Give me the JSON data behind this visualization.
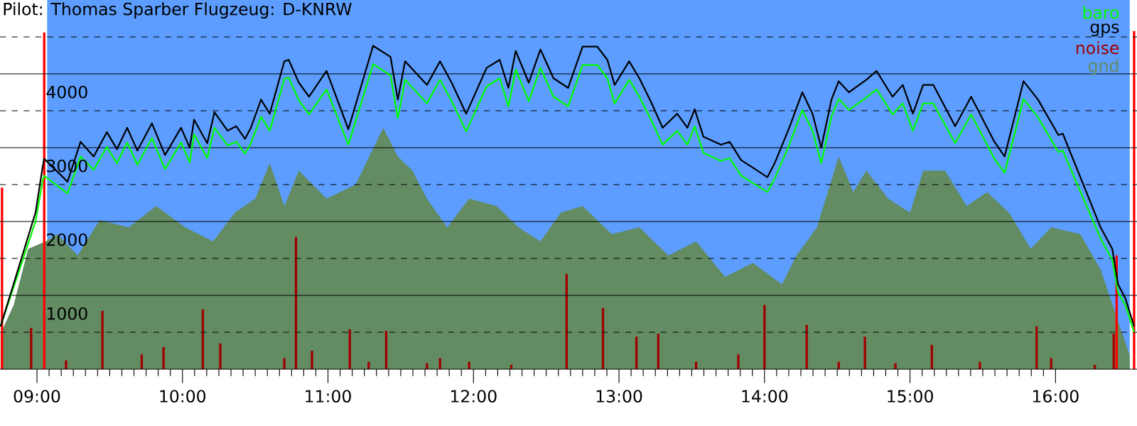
{
  "chart_data": {
    "type": "line",
    "title": "Pilot: Thomas Sparber Flugzeug: D-KNRW",
    "xlim": [
      8.746,
      16.56
    ],
    "ylim": [
      0,
      5000
    ],
    "xticks": [
      {
        "value": 9,
        "label": "09:00"
      },
      {
        "value": 10,
        "label": "10:00"
      },
      {
        "value": 11,
        "label": "11:00"
      },
      {
        "value": 12,
        "label": "12:00"
      },
      {
        "value": 13,
        "label": "13:00"
      },
      {
        "value": 14,
        "label": "14:00"
      },
      {
        "value": 15,
        "label": "15:00"
      },
      {
        "value": 16,
        "label": "16:00"
      }
    ],
    "yticks": [
      {
        "value": 500,
        "label": null
      },
      1000,
      {
        "value": 1500,
        "label": null
      },
      2000,
      {
        "value": 2500,
        "label": null
      },
      3000,
      {
        "value": 3500,
        "label": null
      },
      4000,
      {
        "value": 4500,
        "label": null
      }
    ],
    "grid": "y",
    "legend": "top right",
    "bands": [
      {
        "axis": "x",
        "from": 9.07,
        "to": 16.51,
        "color": "#5c9dff"
      }
    ],
    "series": [
      {
        "name": "baro",
        "color": "#00ff00",
        "x": [
          8.75,
          8.99,
          9.04,
          9.05,
          9.21,
          9.3,
          9.39,
          9.48,
          9.55,
          9.62,
          9.69,
          9.79,
          9.88,
          9.99,
          10.05,
          10.08,
          10.17,
          10.22,
          10.31,
          10.37,
          10.43,
          10.47,
          10.54,
          10.6,
          10.7,
          10.73,
          10.8,
          10.87,
          10.99,
          11.14,
          11.31,
          11.43,
          11.48,
          11.53,
          11.68,
          11.77,
          11.85,
          11.95,
          12.09,
          12.18,
          12.24,
          12.29,
          12.38,
          12.46,
          12.55,
          12.65,
          12.75,
          12.85,
          12.92,
          12.97,
          13.07,
          13.14,
          13.22,
          13.3,
          13.4,
          13.47,
          13.52,
          13.58,
          13.7,
          13.76,
          13.84,
          13.92,
          14.02,
          14.07,
          14.17,
          14.26,
          14.33,
          14.39,
          14.46,
          14.51,
          14.58,
          14.7,
          14.77,
          14.88,
          14.95,
          15.02,
          15.09,
          15.16,
          15.31,
          15.42,
          15.58,
          15.65,
          15.78,
          15.88,
          16.02,
          16.05,
          16.31,
          16.39,
          16.43,
          16.48,
          16.54
        ],
        "values": [
          580,
          2000,
          2560,
          2620,
          2380,
          2880,
          2700,
          3010,
          2790,
          3070,
          2770,
          3130,
          2710,
          3070,
          2800,
          3180,
          2860,
          3270,
          3030,
          3080,
          2920,
          3060,
          3420,
          3230,
          3930,
          3950,
          3640,
          3450,
          3790,
          3040,
          4130,
          3980,
          3400,
          3920,
          3600,
          3920,
          3630,
          3220,
          3830,
          3940,
          3560,
          4060,
          3630,
          4080,
          3690,
          3560,
          4120,
          4120,
          3940,
          3600,
          3920,
          3690,
          3380,
          3040,
          3230,
          3040,
          3290,
          2930,
          2820,
          2860,
          2620,
          2520,
          2400,
          2580,
          3040,
          3510,
          3230,
          2790,
          3420,
          3660,
          3510,
          3680,
          3790,
          3450,
          3600,
          3230,
          3600,
          3600,
          3060,
          3450,
          2850,
          2660,
          3660,
          3410,
          2940,
          2960,
          1770,
          1480,
          1040,
          870,
          500
        ]
      },
      {
        "name": "gps",
        "color": "#000000",
        "x": [
          8.75,
          8.99,
          9.04,
          9.05,
          9.21,
          9.3,
          9.39,
          9.48,
          9.55,
          9.62,
          9.69,
          9.79,
          9.88,
          9.99,
          10.05,
          10.08,
          10.17,
          10.22,
          10.31,
          10.37,
          10.43,
          10.47,
          10.54,
          10.6,
          10.7,
          10.73,
          10.8,
          10.87,
          10.99,
          11.14,
          11.31,
          11.43,
          11.48,
          11.53,
          11.68,
          11.77,
          11.85,
          11.95,
          12.09,
          12.18,
          12.24,
          12.29,
          12.38,
          12.46,
          12.55,
          12.65,
          12.75,
          12.85,
          12.92,
          12.97,
          13.07,
          13.14,
          13.22,
          13.3,
          13.4,
          13.47,
          13.52,
          13.58,
          13.7,
          13.76,
          13.84,
          13.92,
          14.02,
          14.07,
          14.17,
          14.26,
          14.33,
          14.39,
          14.46,
          14.51,
          14.58,
          14.7,
          14.77,
          14.88,
          14.95,
          15.02,
          15.09,
          15.16,
          15.31,
          15.42,
          15.58,
          15.65,
          15.78,
          15.88,
          16.02,
          16.05,
          16.31,
          16.39,
          16.43,
          16.48,
          16.54
        ],
        "values": [
          580,
          2120,
          2750,
          2850,
          2540,
          3080,
          2880,
          3210,
          2980,
          3270,
          2960,
          3330,
          2900,
          3270,
          3000,
          3380,
          3060,
          3480,
          3230,
          3290,
          3120,
          3270,
          3650,
          3460,
          4170,
          4190,
          3880,
          3690,
          4040,
          3250,
          4380,
          4230,
          3650,
          4170,
          3850,
          4170,
          3880,
          3460,
          4080,
          4190,
          3810,
          4310,
          3880,
          4330,
          3940,
          3810,
          4370,
          4370,
          4190,
          3850,
          4170,
          3940,
          3620,
          3270,
          3460,
          3270,
          3520,
          3150,
          3040,
          3080,
          2830,
          2730,
          2600,
          2790,
          3270,
          3750,
          3460,
          3000,
          3650,
          3900,
          3750,
          3920,
          4040,
          3690,
          3850,
          3460,
          3850,
          3850,
          3290,
          3690,
          3080,
          2880,
          3900,
          3650,
          3170,
          3190,
          1920,
          1630,
          1150,
          960,
          580
        ]
      },
      {
        "name": "noise",
        "type": "bar",
        "color": "#a00000",
        "x": [
          8.76,
          8.96,
          9.05,
          9.2,
          9.45,
          9.72,
          9.87,
          10.14,
          10.26,
          10.7,
          10.78,
          10.89,
          11.15,
          11.28,
          11.4,
          11.68,
          11.77,
          11.97,
          12.26,
          12.64,
          12.89,
          13.12,
          13.27,
          13.53,
          13.82,
          14.0,
          14.29,
          14.51,
          14.69,
          14.9,
          15.15,
          15.48,
          15.87,
          15.97,
          16.27,
          16.4,
          16.42,
          16.54
        ],
        "values": [
          2460,
          560,
          4560,
          120,
          790,
          200,
          300,
          810,
          350,
          150,
          1790,
          250,
          540,
          100,
          520,
          80,
          150,
          100,
          60,
          1290,
          830,
          440,
          480,
          100,
          200,
          870,
          600,
          100,
          440,
          80,
          330,
          100,
          580,
          150,
          60,
          480,
          1540,
          4580
        ],
        "colors": [
          "#ff0000",
          "#a00000",
          "#ff0000",
          "#a00000",
          "#a00000",
          "#a00000",
          "#a00000",
          "#a00000",
          "#a00000",
          "#a00000",
          "#a00000",
          "#a00000",
          "#a00000",
          "#a00000",
          "#a00000",
          "#a00000",
          "#a00000",
          "#a00000",
          "#a00000",
          "#a00000",
          "#a00000",
          "#a00000",
          "#a00000",
          "#a00000",
          "#a00000",
          "#a00000",
          "#a00000",
          "#a00000",
          "#a00000",
          "#a00000",
          "#a00000",
          "#a00000",
          "#a00000",
          "#a00000",
          "#a00000",
          "#a00000",
          "#ff0000",
          "#ff0000"
        ]
      },
      {
        "name": "gnd",
        "type": "area",
        "color": "#638c63",
        "x": [
          8.75,
          8.84,
          8.94,
          9.06,
          9.14,
          9.28,
          9.43,
          9.63,
          9.82,
          10.02,
          10.21,
          10.36,
          10.5,
          10.6,
          10.7,
          10.8,
          10.99,
          11.19,
          11.38,
          11.48,
          11.58,
          11.68,
          11.82,
          11.97,
          12.16,
          12.31,
          12.46,
          12.6,
          12.75,
          12.95,
          13.14,
          13.34,
          13.53,
          13.73,
          13.92,
          14.12,
          14.22,
          14.36,
          14.51,
          14.61,
          14.7,
          14.85,
          15.0,
          15.09,
          15.24,
          15.39,
          15.53,
          15.68,
          15.83,
          15.97,
          16.17,
          16.31,
          16.41,
          16.51
        ],
        "values": [
          480,
          870,
          1630,
          1730,
          1830,
          1540,
          2020,
          1920,
          2210,
          1920,
          1730,
          2120,
          2310,
          2790,
          2210,
          2690,
          2310,
          2500,
          3270,
          2880,
          2690,
          2310,
          1920,
          2310,
          2210,
          1920,
          1730,
          2120,
          2210,
          1830,
          1920,
          1540,
          1730,
          1250,
          1440,
          1150,
          1540,
          1920,
          2880,
          2400,
          2690,
          2310,
          2120,
          2690,
          2690,
          2210,
          2400,
          2120,
          1630,
          1920,
          1830,
          1350,
          770,
          190
        ]
      }
    ]
  }
}
